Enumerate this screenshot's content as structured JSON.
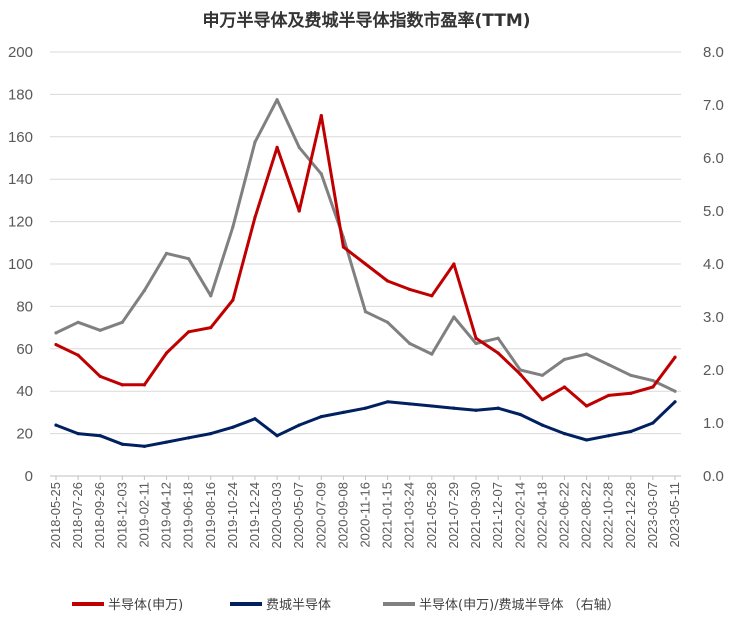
{
  "chart_data": {
    "type": "line",
    "title": "申万半导体及费城半导体指数市盈率(TTM)",
    "x": [
      "2018-05-25",
      "2018-07-26",
      "2018-09-26",
      "2018-12-03",
      "2019-02-11",
      "2019-04-12",
      "2019-06-18",
      "2019-08-16",
      "2019-10-24",
      "2019-12-24",
      "2020-03-03",
      "2020-05-07",
      "2020-07-09",
      "2020-09-08",
      "2020-11-16",
      "2021-01-15",
      "2021-03-24",
      "2021-05-28",
      "2021-07-29",
      "2021-09-30",
      "2021-12-07",
      "2022-02-14",
      "2022-04-18",
      "2022-06-22",
      "2022-08-22",
      "2022-10-28",
      "2022-12-28",
      "2023-03-07",
      "2023-05-11"
    ],
    "ylim_left": [
      0,
      200
    ],
    "yticks_left": [
      "0",
      "20",
      "40",
      "60",
      "80",
      "100",
      "120",
      "140",
      "160",
      "180",
      "200"
    ],
    "ylim_right": [
      0.0,
      8.0
    ],
    "yticks_right": [
      "0.0",
      "1.0",
      "2.0",
      "3.0",
      "4.0",
      "5.0",
      "6.0",
      "7.0",
      "8.0"
    ],
    "series": [
      {
        "name": "半导体(申万)",
        "axis": "left",
        "color": "#C00000",
        "values": [
          62,
          57,
          47,
          43,
          43,
          58,
          68,
          70,
          83,
          122,
          155,
          125,
          170,
          108,
          100,
          92,
          88,
          85,
          100,
          65,
          58,
          48,
          36,
          42,
          33,
          38,
          39,
          42,
          56
        ]
      },
      {
        "name": "费城半导体",
        "axis": "left",
        "color": "#002060",
        "values": [
          24,
          20,
          19,
          15,
          14,
          16,
          18,
          20,
          23,
          27,
          19,
          24,
          28,
          30,
          32,
          35,
          34,
          33,
          32,
          31,
          32,
          29,
          24,
          20,
          17,
          19,
          21,
          25,
          35
        ]
      },
      {
        "name": "半导体(申万)/费城半导体 （右轴）",
        "axis": "right",
        "color": "#808080",
        "values": [
          2.7,
          2.9,
          2.75,
          2.9,
          3.5,
          4.2,
          4.1,
          3.4,
          4.7,
          6.3,
          7.1,
          6.2,
          5.7,
          4.5,
          3.1,
          2.9,
          2.5,
          2.3,
          3.0,
          2.5,
          2.6,
          2.0,
          1.9,
          2.2,
          2.3,
          2.1,
          1.9,
          1.8,
          1.6
        ]
      }
    ]
  }
}
